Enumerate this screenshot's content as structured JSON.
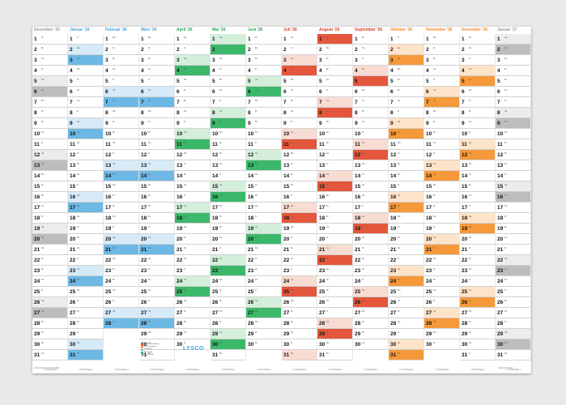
{
  "months": [
    {
      "label": "Dezember '25",
      "color": "#9a9a9a",
      "fill": "#bdbdbd",
      "light": "#ececec",
      "first": 1,
      "days": 31
    },
    {
      "label": "Januar '26",
      "color": "#4aa3d8",
      "fill": "#6db8e4",
      "light": "#d6eaf7",
      "first": 4,
      "days": 31
    },
    {
      "label": "Februar '26",
      "color": "#4aa3d8",
      "fill": "#6db8e4",
      "light": "#d6eaf7",
      "first": 0,
      "days": 28
    },
    {
      "label": "März '26",
      "color": "#4aa3d8",
      "fill": "#6db8e4",
      "light": "#d6eaf7",
      "first": 0,
      "days": 31
    },
    {
      "label": "April '26",
      "color": "#2ea35a",
      "fill": "#3cb86a",
      "light": "#d3efdb",
      "first": 3,
      "days": 30
    },
    {
      "label": "Mai '26",
      "color": "#2ea35a",
      "fill": "#3cb86a",
      "light": "#d3efdb",
      "first": 5,
      "days": 31
    },
    {
      "label": "Juni '26",
      "color": "#2ea35a",
      "fill": "#3cb86a",
      "light": "#d3efdb",
      "first": 1,
      "days": 30
    },
    {
      "label": "Juli '26",
      "color": "#d9412a",
      "fill": "#e4573c",
      "light": "#f8dcd2",
      "first": 3,
      "days": 31
    },
    {
      "label": "August '26",
      "color": "#d9412a",
      "fill": "#e4573c",
      "light": "#f8dcd2",
      "first": 6,
      "days": 31
    },
    {
      "label": "September '26",
      "color": "#d9412a",
      "fill": "#e4573c",
      "light": "#f8dcd2",
      "first": 2,
      "days": 30
    },
    {
      "label": "Oktober '26",
      "color": "#f08a24",
      "fill": "#f5993a",
      "light": "#fde3c8",
      "first": 4,
      "days": 31
    },
    {
      "label": "November '26",
      "color": "#f08a24",
      "fill": "#f5993a",
      "light": "#fde3c8",
      "first": 0,
      "days": 30
    },
    {
      "label": "Dezember '26",
      "color": "#f08a24",
      "fill": "#f5993a",
      "light": "#fde3c8",
      "first": 2,
      "days": 31
    },
    {
      "label": "Januar '27",
      "color": "#9a9a9a",
      "fill": "#bdbdbd",
      "light": "#ececec",
      "first": 5,
      "days": 31
    }
  ],
  "weekday_abbr": [
    "Mo",
    "Di",
    "Mi",
    "Do",
    "Fr",
    "Sa",
    "So"
  ],
  "logo": "LYSCO",
  "footer_text": "( 0 Arbeitstage )",
  "left_note": "Ferientermine ohne Gewähr",
  "right_note": "Kalenderwochen",
  "legend": [
    {
      "color": "#e4573c",
      "label": "Feiertag bundesweit"
    },
    {
      "color": "#f5993a",
      "label": "Feiertag regional"
    },
    {
      "color": "#6db8e4",
      "label": "Schulferien"
    },
    {
      "color": "#3cb86a",
      "label": "Brückentag"
    },
    {
      "color": "#bdbdbd",
      "label": "Wochenende"
    }
  ]
}
